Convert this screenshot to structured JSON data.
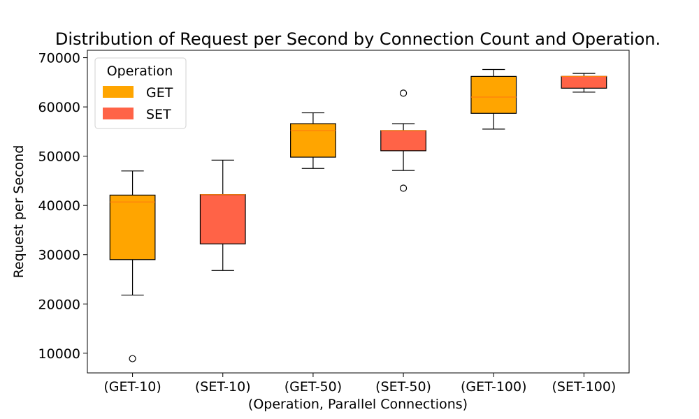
{
  "chart_data": {
    "type": "boxplot",
    "title": "Distribution of Request per Second by Connection Count and Operation.",
    "xlabel": "(Operation, Parallel Connections)",
    "ylabel": "Request per Second",
    "ylim": [
      6000,
      71500
    ],
    "yticks": [
      10000,
      20000,
      30000,
      40000,
      50000,
      60000,
      70000
    ],
    "ytick_labels": [
      "10000",
      "20000",
      "30000",
      "40000",
      "50000",
      "60000",
      "70000"
    ],
    "grid": false,
    "legend": {
      "title": "Operation",
      "placement": "top-left",
      "entries": [
        {
          "label": "GET",
          "color": "#FFA500"
        },
        {
          "label": "SET",
          "color": "#FF6347"
        }
      ]
    },
    "median_color": "#FF7F0E",
    "categories": [
      "(GET-10)",
      "(SET-10)",
      "(GET-50)",
      "(SET-50)",
      "(GET-100)",
      "(SET-100)"
    ],
    "boxes": [
      {
        "label": "(GET-10)",
        "operation": "GET",
        "whisker_low": 21800,
        "q1": 29000,
        "median": 40700,
        "q3": 42100,
        "whisker_high": 47000,
        "outliers": [
          8900
        ]
      },
      {
        "label": "(SET-10)",
        "operation": "SET",
        "whisker_low": 26800,
        "q1": 32200,
        "median": 42200,
        "q3": 42200,
        "whisker_high": 49200,
        "outliers": []
      },
      {
        "label": "(GET-50)",
        "operation": "GET",
        "whisker_low": 47500,
        "q1": 49800,
        "median": 55200,
        "q3": 56600,
        "whisker_high": 58800,
        "outliers": []
      },
      {
        "label": "(SET-50)",
        "operation": "SET",
        "whisker_low": 47100,
        "q1": 51100,
        "median": 55200,
        "q3": 55200,
        "whisker_high": 56600,
        "outliers": [
          43500,
          62800
        ]
      },
      {
        "label": "(GET-100)",
        "operation": "GET",
        "whisker_low": 55500,
        "q1": 58700,
        "median": 62000,
        "q3": 66200,
        "whisker_high": 67600,
        "outliers": []
      },
      {
        "label": "(SET-100)",
        "operation": "SET",
        "whisker_low": 63000,
        "q1": 63800,
        "median": 66200,
        "q3": 66200,
        "whisker_high": 66800,
        "outliers": []
      }
    ]
  }
}
